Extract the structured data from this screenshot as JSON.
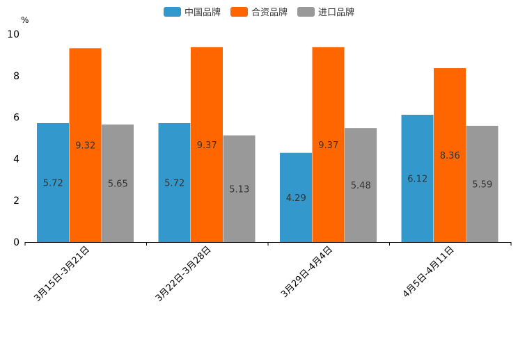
{
  "colors": {
    "china": "#3399cc",
    "jv": "#ff6600",
    "import": "#999999",
    "axis": "#000000",
    "text": "#333333"
  },
  "chart_data": {
    "type": "bar",
    "unit_label": "%",
    "categories": [
      "3月15日-3月21日",
      "3月22日-3月28日",
      "3月29日-4月4日",
      "4月5日-4月11日"
    ],
    "series": [
      {
        "name": "中国品牌",
        "values": [
          5.72,
          5.72,
          4.29,
          6.12
        ]
      },
      {
        "name": "合资品牌",
        "values": [
          9.32,
          9.37,
          9.37,
          8.36
        ]
      },
      {
        "name": "进口品牌",
        "values": [
          5.65,
          5.13,
          5.48,
          5.59
        ]
      }
    ],
    "ylim": [
      0,
      10
    ],
    "yticks": [
      0,
      2,
      4,
      6,
      8,
      10
    ],
    "legend_position": "top-center",
    "grid": false
  }
}
